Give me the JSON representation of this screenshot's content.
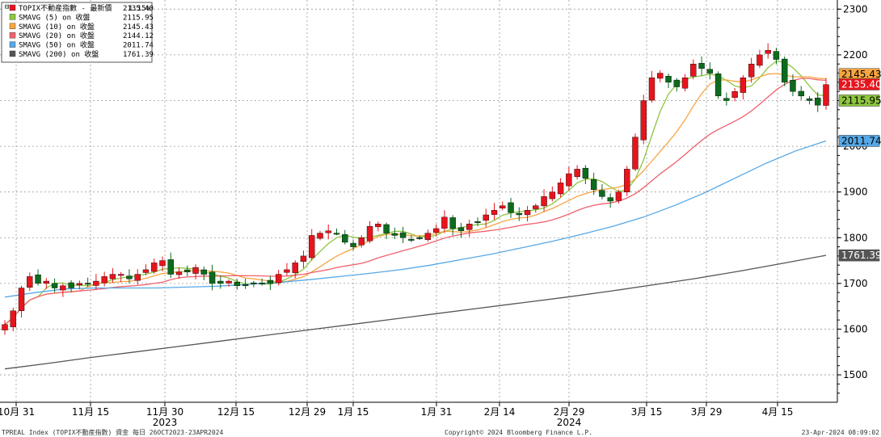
{
  "chart_data": {
    "type": "candlestick",
    "x_tick_labels": [
      "10月 31",
      "11月 15",
      "11月 30",
      "12月 15",
      "12月 29",
      "1月 15",
      "1月 31",
      "2月 14",
      "2月 29",
      "3月 15",
      "3月 29",
      "4月 15"
    ],
    "year_labels": [
      "2023",
      "2024"
    ],
    "y_ticks": [
      1500,
      1600,
      1700,
      1800,
      1900,
      2000,
      2100,
      2200,
      2300
    ],
    "ylim": [
      1440,
      2320
    ],
    "grid": true,
    "legend_placement": "top-left",
    "legend": [
      {
        "label": "TOPIX不動産指數 - 最新價",
        "value": "2135.40",
        "change": "1.15%",
        "color": "#e8141c"
      },
      {
        "label": "SMAVG (5)  on 收盤",
        "value": "2115.95",
        "color": "#8dc63f"
      },
      {
        "label": "SMAVG (10)  on 收盤",
        "value": "2145.43",
        "color": "#f7a541"
      },
      {
        "label": "SMAVG (20)  on 收盤",
        "value": "2144.12",
        "color": "#f0616b"
      },
      {
        "label": "SMAVG (50)  on 收盤",
        "value": "2011.74",
        "color": "#56a8e6"
      },
      {
        "label": "SMAVG (200)  on 收盤",
        "value": "1761.39",
        "color": "#555555"
      }
    ],
    "last_value_tags": [
      {
        "value": "2145.43",
        "color": "#f7a541"
      },
      {
        "value": "2135.40",
        "color": "#e8141c"
      },
      {
        "value": "2115.95",
        "color": "#8dc63f"
      },
      {
        "value": "2011.74",
        "color": "#56a8e6"
      },
      {
        "value": "1761.39",
        "color": "#555555"
      }
    ],
    "ohlc_close_approx": [
      1610,
      1640,
      1690,
      1715,
      1700,
      1705,
      1690,
      1695,
      1690,
      1700,
      1700,
      1705,
      1715,
      1720,
      1720,
      1710,
      1720,
      1730,
      1745,
      1750,
      1720,
      1725,
      1725,
      1735,
      1720,
      1700,
      1700,
      1705,
      1695,
      1695,
      1700,
      1700,
      1700,
      1720,
      1730,
      1745,
      1760,
      1805,
      1810,
      1815,
      1810,
      1790,
      1780,
      1800,
      1825,
      1830,
      1810,
      1805,
      1800,
      1795,
      1800,
      1810,
      1820,
      1845,
      1820,
      1815,
      1830,
      1835,
      1850,
      1860,
      1870,
      1855,
      1850,
      1860,
      1870,
      1890,
      1900,
      1920,
      1940,
      1950,
      1930,
      1905,
      1890,
      1880,
      1900,
      1950,
      2020,
      2100,
      2150,
      2160,
      2140,
      2130,
      2150,
      2180,
      2170,
      2160,
      2110,
      2100,
      2120,
      2150,
      2180,
      2200,
      2210,
      2190,
      2140,
      2120,
      2110,
      2100,
      2090,
      2135
    ],
    "sma50_approx": [
      1670,
      1680,
      1688,
      1690,
      1690,
      1690,
      1692,
      1694,
      1698,
      1702,
      1708,
      1715,
      1722,
      1730,
      1740,
      1752,
      1764,
      1778,
      1792,
      1808,
      1825,
      1845,
      1870,
      1898,
      1930,
      1962,
      1990,
      2011.74
    ],
    "sma200_approx": [
      1513,
      1525,
      1538,
      1550,
      1562,
      1574,
      1586,
      1598,
      1610,
      1622,
      1634,
      1646,
      1658,
      1670,
      1683,
      1697,
      1711,
      1727,
      1744,
      1761.39
    ]
  },
  "footer": {
    "left": "TPREAL Index (TOPIX不動産指數) 資金  每日 26OCT2023-23APR2024",
    "center": "Copyright© 2024 Bloomberg Finance L.P.",
    "right": "23-Apr-2024 08:09:02"
  }
}
